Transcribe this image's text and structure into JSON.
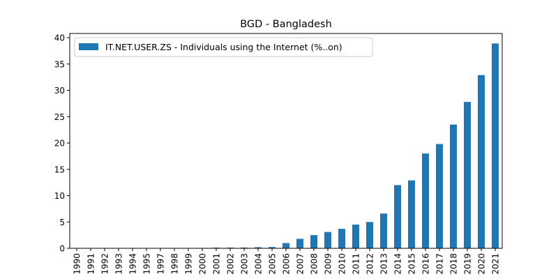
{
  "chart_data": {
    "type": "bar",
    "title": "BGD - Bangladesh",
    "xlabel": "",
    "ylabel": "",
    "ylim": [
      0,
      40.8
    ],
    "yticks": [
      0,
      5,
      10,
      15,
      20,
      25,
      30,
      35,
      40
    ],
    "categories": [
      "1990",
      "1991",
      "1992",
      "1993",
      "1994",
      "1995",
      "1997",
      "1998",
      "1999",
      "2000",
      "2001",
      "2002",
      "2003",
      "2004",
      "2005",
      "2006",
      "2007",
      "2008",
      "2009",
      "2010",
      "2011",
      "2012",
      "2013",
      "2014",
      "2015",
      "2016",
      "2017",
      "2018",
      "2019",
      "2020",
      "2021"
    ],
    "series": [
      {
        "name": "IT.NET.USER.ZS - Individuals using the Internet (%..on)",
        "color": "#1f77b4",
        "values": [
          0,
          0,
          0,
          0,
          0,
          0,
          0.001,
          0.03,
          0.04,
          0.07,
          0.13,
          0.14,
          0.15,
          0.2,
          0.24,
          1.0,
          1.8,
          2.5,
          3.1,
          3.7,
          4.5,
          5.0,
          6.6,
          12.0,
          12.9,
          18.0,
          19.8,
          23.5,
          27.8,
          32.9,
          38.9
        ]
      }
    ],
    "legend_position": "top-left",
    "grid": false
  }
}
